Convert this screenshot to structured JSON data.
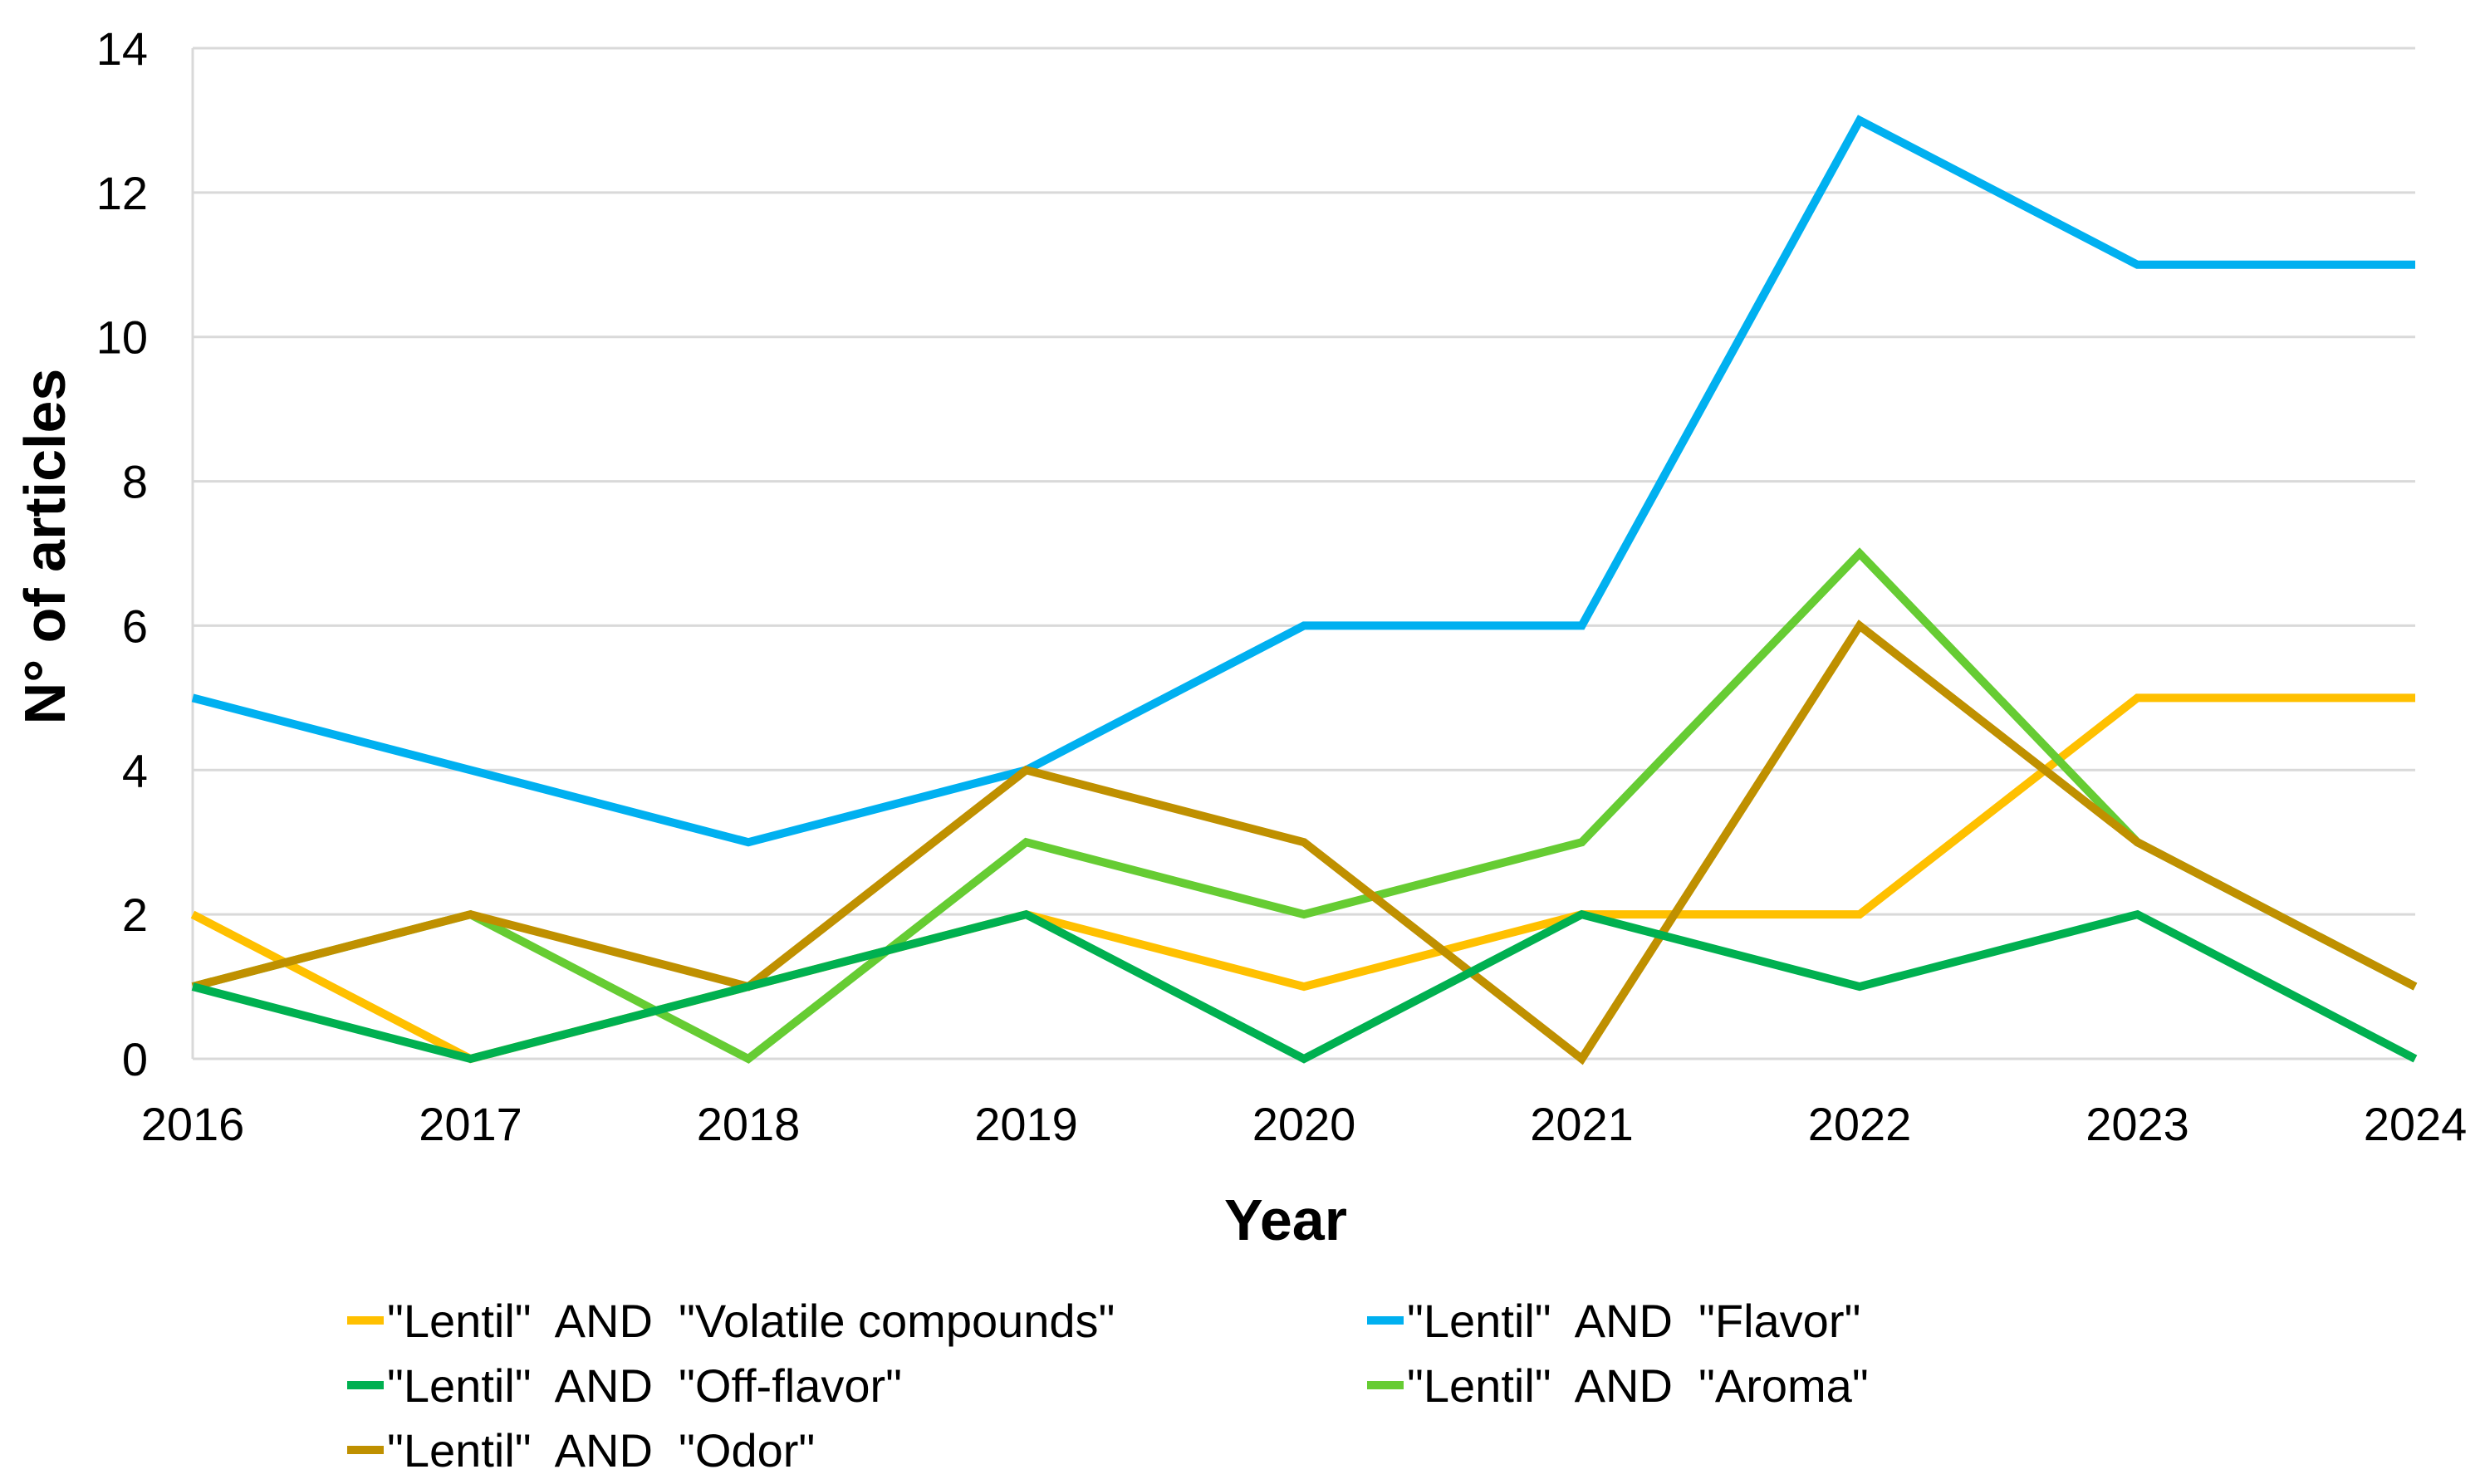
{
  "chart_data": {
    "type": "line",
    "title": "",
    "xlabel": "Year",
    "ylabel": "N° of articles",
    "ylim": [
      0,
      14
    ],
    "yticks": [
      0,
      2,
      4,
      6,
      8,
      10,
      12,
      14
    ],
    "grid": true,
    "legend_position": "bottom",
    "categories": [
      "2016",
      "2017",
      "2018",
      "2019",
      "2020",
      "2021",
      "2022",
      "2023",
      "2024"
    ],
    "series": [
      {
        "name": "\"Lentil\"  AND  \"Volatile compounds\"",
        "color": "#ffc000",
        "values": [
          2,
          0,
          1,
          2,
          1,
          2,
          2,
          5,
          5
        ]
      },
      {
        "name": "\"Lentil\"  AND  \"Flavor\"",
        "color": "#00b0f0",
        "values": [
          5,
          4,
          3,
          4,
          6,
          6,
          13,
          11,
          11
        ]
      },
      {
        "name": "\"Lentil\"  AND  \"Off-flavor\"",
        "color": "#00b050",
        "values": [
          1,
          0,
          1,
          2,
          0,
          2,
          1,
          2,
          0
        ]
      },
      {
        "name": "\"Lentil\"  AND  \"Aroma\"",
        "color": "#66cc33",
        "values": [
          1,
          2,
          0,
          3,
          2,
          3,
          7,
          3,
          1
        ]
      },
      {
        "name": "\"Lentil\"  AND  \"Odor\"",
        "color": "#bf9000",
        "values": [
          1,
          2,
          1,
          4,
          3,
          0,
          6,
          3,
          1
        ]
      }
    ],
    "draw_order": [
      0,
      1,
      3,
      4,
      2
    ]
  }
}
